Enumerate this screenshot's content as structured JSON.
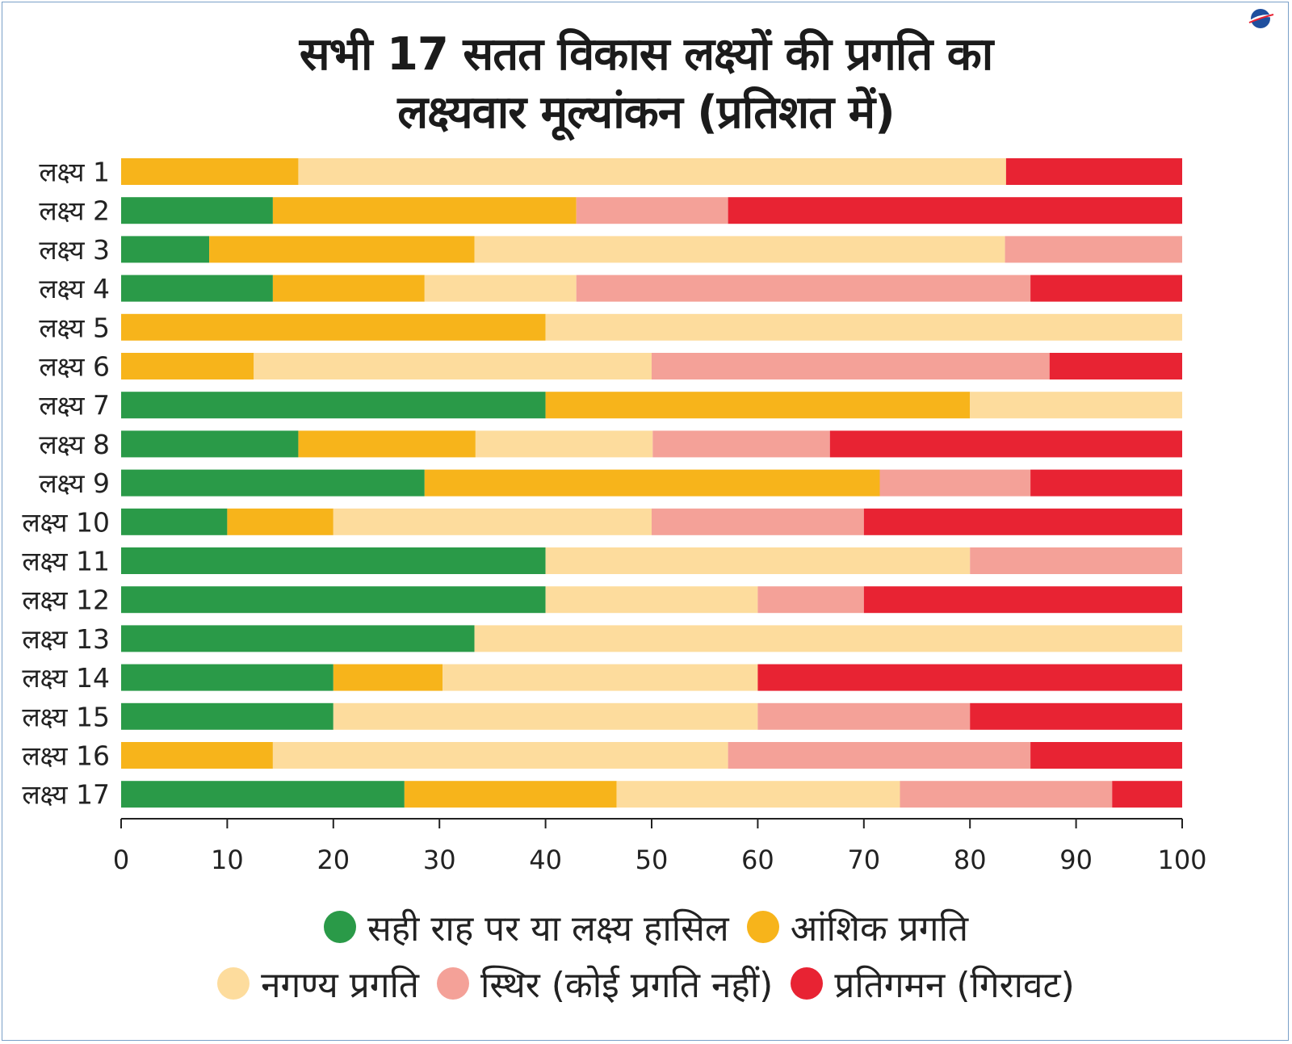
{
  "chart_data": {
    "type": "bar",
    "orientation": "horizontal",
    "stacked": true,
    "title": "सभी 17 सतत विकास लक्ष्यों की प्रगति का लक्ष्यवार मूल्यांकन (प्रतिशत में)",
    "title_lines": [
      "सभी 17 सतत विकास लक्ष्यों की प्रगति का",
      "लक्ष्यवार मूल्यांकन (प्रतिशत में)"
    ],
    "xlabel": "",
    "ylabel": "",
    "xlim": [
      0,
      100
    ],
    "xticks": [
      0,
      10,
      20,
      30,
      40,
      50,
      60,
      70,
      80,
      90,
      100
    ],
    "grid": false,
    "legend_position": "bottom",
    "categories": [
      "लक्ष्य 1",
      "लक्ष्य 2",
      "लक्ष्य 3",
      "लक्ष्य 4",
      "लक्ष्य 5",
      "लक्ष्य 6",
      "लक्ष्य 7",
      "लक्ष्य 8",
      "लक्ष्य 9",
      "लक्ष्य 10",
      "लक्ष्य 11",
      "लक्ष्य 12",
      "लक्ष्य 13",
      "लक्ष्य 14",
      "लक्ष्य 15",
      "लक्ष्य 16",
      "लक्ष्य 17"
    ],
    "series": [
      {
        "name": "सही राह पर या लक्ष्य हासिल",
        "color": "#2a9a48",
        "values": [
          0,
          14.3,
          8.3,
          14.3,
          0,
          0,
          40,
          16.7,
          28.6,
          10,
          40,
          40,
          33.3,
          20,
          20,
          0,
          26.7
        ]
      },
      {
        "name": "आंशिक प्रगति",
        "color": "#f7b41b",
        "values": [
          16.7,
          28.6,
          25,
          14.3,
          40,
          12.5,
          40,
          16.7,
          42.9,
          10,
          0,
          0,
          0,
          10.3,
          0,
          14.3,
          20
        ]
      },
      {
        "name": "नगण्य प्रगति",
        "color": "#fddc9d",
        "values": [
          66.7,
          0,
          50,
          14.3,
          60,
          37.5,
          20,
          16.7,
          0,
          30,
          40,
          20,
          66.7,
          29.7,
          40,
          42.9,
          26.7
        ]
      },
      {
        "name": "स्थिर (कोई प्रगति नहीं)",
        "color": "#f4a198",
        "values": [
          0,
          14.3,
          16.7,
          42.8,
          0,
          37.5,
          0,
          16.7,
          14.2,
          20,
          20,
          10,
          0,
          0,
          20,
          28.5,
          20
        ]
      },
      {
        "name": "प्रतिगमन (गिरावट)",
        "color": "#e82333",
        "values": [
          16.6,
          42.8,
          0,
          14.3,
          0,
          12.5,
          0,
          33.2,
          14.3,
          30,
          0,
          30,
          0,
          40,
          20,
          14.3,
          6.6
        ]
      }
    ]
  },
  "legend": {
    "row1": [
      {
        "label": "सही राह पर या लक्ष्य हासिल",
        "color": "#2a9a48"
      },
      {
        "label": "आंशिक प्रगति",
        "color": "#f7b41b"
      }
    ],
    "row2": [
      {
        "label": "नगण्य प्रगति",
        "color": "#fddc9d"
      },
      {
        "label": "स्थिर (कोई प्रगति नहीं)",
        "color": "#f4a198"
      },
      {
        "label": "प्रतिगमन (गिरावट)",
        "color": "#e82333"
      }
    ]
  },
  "logo": {
    "icon": "publisher-logo-icon"
  }
}
